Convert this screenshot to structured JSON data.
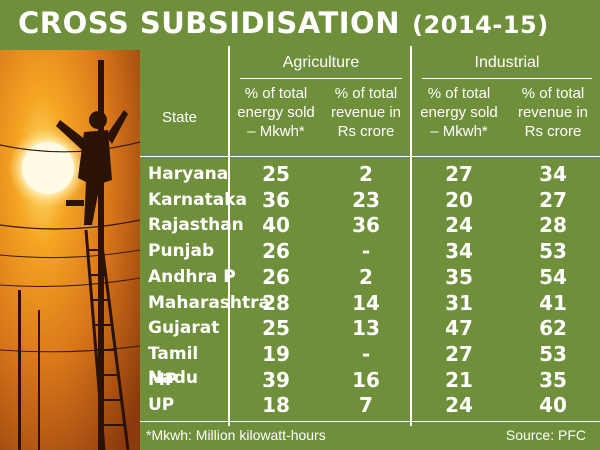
{
  "title": "CROSS SUBSIDISATION",
  "period": "(2014-15)",
  "groups": [
    "Agriculture",
    "Industrial"
  ],
  "state_header": "State",
  "col_headers": [
    [
      "% of total",
      "energy sold",
      "– Mkwh*"
    ],
    [
      "% of total",
      "revenue in",
      "Rs crore"
    ],
    [
      "% of total",
      "energy sold",
      "– Mkwh*"
    ],
    [
      "% of total",
      "revenue in",
      "Rs crore"
    ]
  ],
  "footnote": "*Mkwh: Million kilowatt-hours",
  "source": "Source: PFC",
  "chart_data": {
    "type": "table",
    "title": "CROSS SUBSIDISATION (2014-15)",
    "columns": [
      "State",
      "Agriculture % of total energy sold – Mkwh*",
      "Agriculture % of total revenue in Rs crore",
      "Industrial % of total energy sold – Mkwh*",
      "Industrial % of total revenue in Rs crore"
    ],
    "rows": [
      [
        "Haryana",
        "25",
        "2",
        "27",
        "34"
      ],
      [
        "Karnataka",
        "36",
        "23",
        "20",
        "27"
      ],
      [
        "Rajasthan",
        "40",
        "36",
        "24",
        "28"
      ],
      [
        "Punjab",
        "26",
        "-",
        "34",
        "53"
      ],
      [
        "Andhra P",
        "26",
        "2",
        "35",
        "54"
      ],
      [
        "Maharashtra",
        "28",
        "14",
        "31",
        "41"
      ],
      [
        "Gujarat",
        "25",
        "13",
        "47",
        "62"
      ],
      [
        "Tamil Nadu",
        "19",
        "-",
        "27",
        "53"
      ],
      [
        "MP",
        "39",
        "16",
        "21",
        "35"
      ],
      [
        "UP",
        "18",
        "7",
        "24",
        "40"
      ]
    ]
  },
  "colors": {
    "background": "#6f8f3a",
    "text": "#ffffff",
    "photo_sky": "#e88a1c"
  }
}
